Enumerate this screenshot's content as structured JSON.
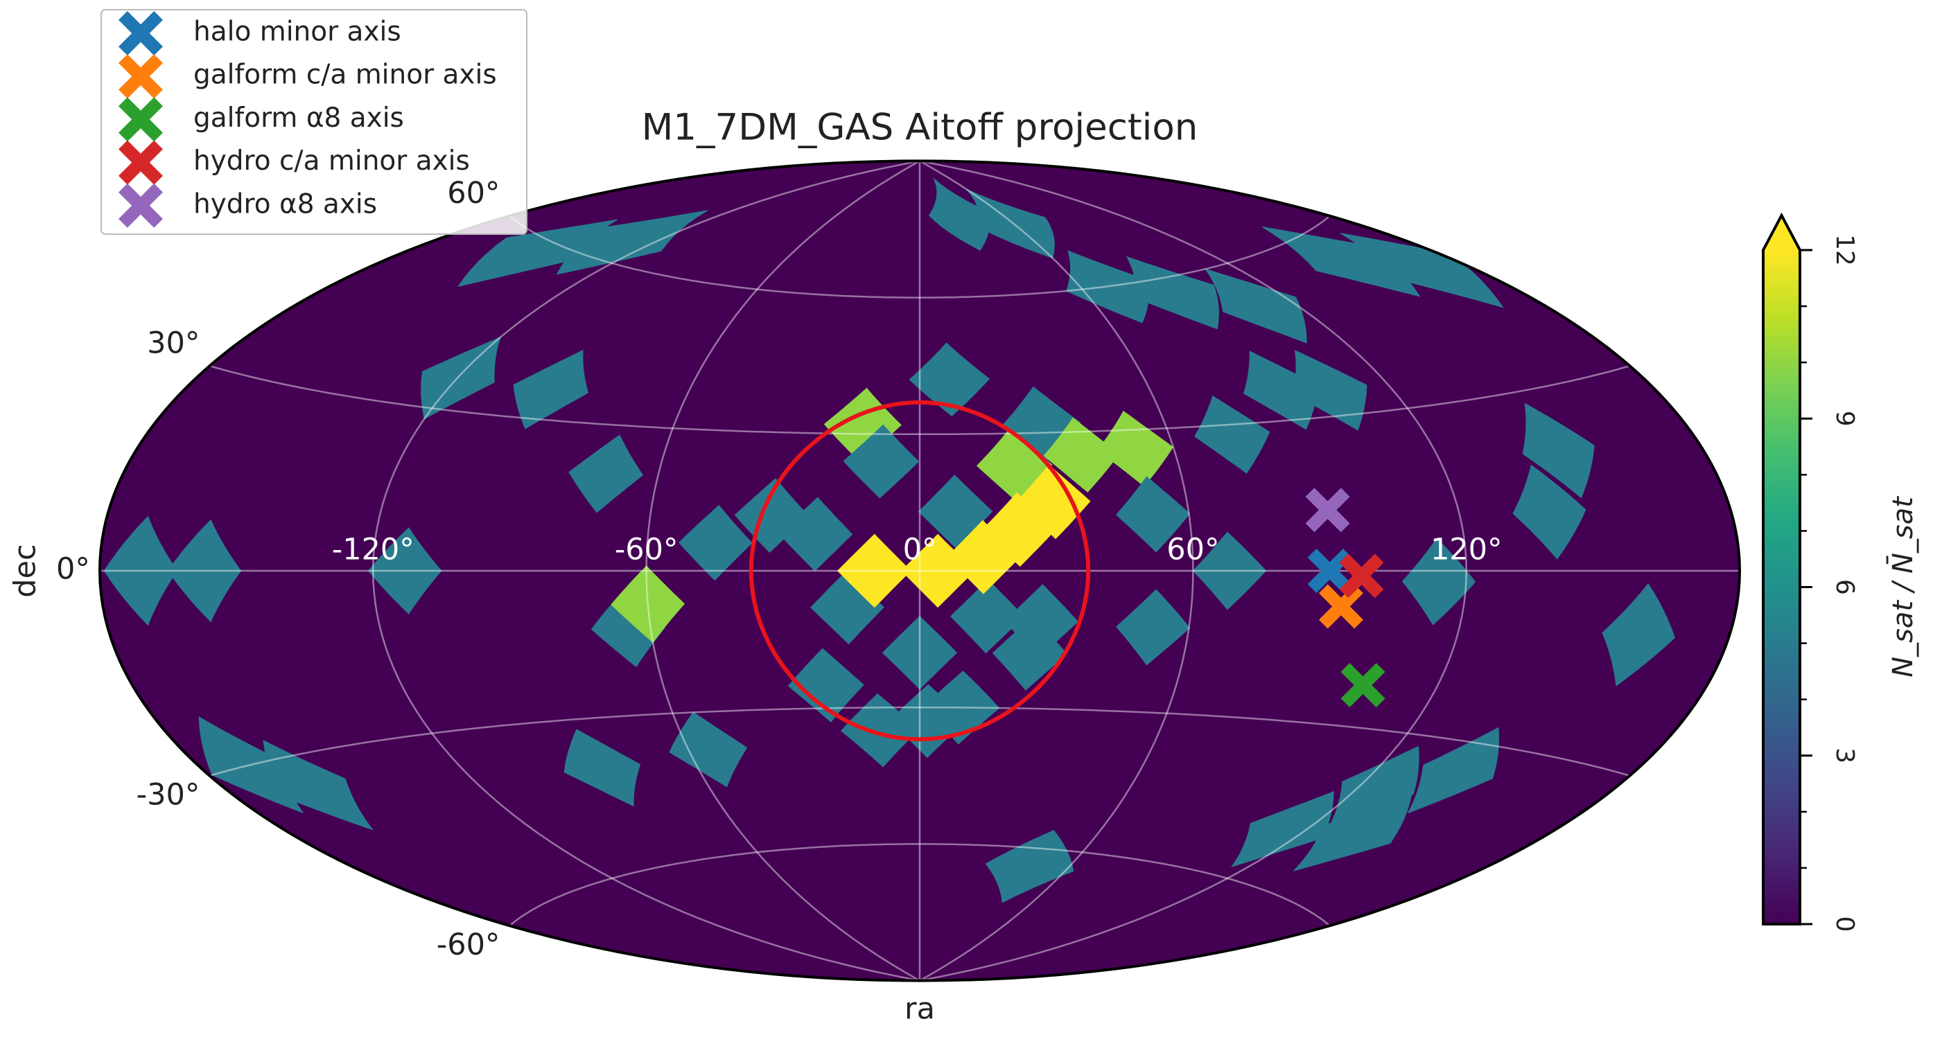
{
  "chart_data": {
    "type": "aitoff",
    "title": "M1_7DM_GAS Aitoff projection",
    "xlabel": "ra",
    "ylabel": "dec",
    "xticks": [
      {
        "value": -120,
        "label": "-120°"
      },
      {
        "value": -60,
        "label": "-60°"
      },
      {
        "value": 0,
        "label": "0°"
      },
      {
        "value": 60,
        "label": "60°"
      },
      {
        "value": 120,
        "label": "120°"
      }
    ],
    "yticks": [
      {
        "value": -60,
        "label": "-60°"
      },
      {
        "value": -30,
        "label": "-30°"
      },
      {
        "value": 0,
        "label": "0°"
      },
      {
        "value": 30,
        "label": "30°"
      },
      {
        "value": 60,
        "label": "60°"
      }
    ],
    "grid": true,
    "colormap": "viridis",
    "clim": [
      0,
      12
    ],
    "cticks": [
      0,
      3,
      6,
      9,
      12
    ],
    "cminorticks": [
      1,
      2,
      4,
      5,
      7,
      8,
      10,
      11
    ],
    "colorbar_extend": "max",
    "colorbar_label": "N_sat / N̄_sat",
    "pixels": [
      {
        "ra": -150,
        "dec": 58,
        "value": 5
      },
      {
        "ra": -130,
        "dec": 64,
        "value": 5
      },
      {
        "ra": 30,
        "dec": 78,
        "value": 5
      },
      {
        "ra": 60,
        "dec": 75,
        "value": 5
      },
      {
        "ra": 70,
        "dec": 60,
        "value": 5
      },
      {
        "ra": 90,
        "dec": 57,
        "value": 5
      },
      {
        "ra": 110,
        "dec": 52,
        "value": 5
      },
      {
        "ra": 155,
        "dec": 55,
        "value": 5
      },
      {
        "ra": 170,
        "dec": 50,
        "value": 5
      },
      {
        "ra": 93,
        "dec": 36,
        "value": 5
      },
      {
        "ra": 105,
        "dec": 35,
        "value": 5
      },
      {
        "ra": 75,
        "dec": 28,
        "value": 5
      },
      {
        "ra": 8,
        "dec": 42,
        "value": 5
      },
      {
        "ra": 30,
        "dec": 32,
        "value": 5
      },
      {
        "ra": -14,
        "dec": 32,
        "value": 10
      },
      {
        "ra": -9,
        "dec": 24,
        "value": 5
      },
      {
        "ra": 22,
        "dec": 23,
        "value": 10
      },
      {
        "ra": 38,
        "dec": 25,
        "value": 10
      },
      {
        "ra": 51,
        "dec": 26,
        "value": 10
      },
      {
        "ra": 52,
        "dec": 12,
        "value": 5
      },
      {
        "ra": 8,
        "dec": 13,
        "value": 5
      },
      {
        "ra": -23,
        "dec": 8,
        "value": 5
      },
      {
        "ra": -33,
        "dec": 12,
        "value": 5
      },
      {
        "ra": -45,
        "dec": 6,
        "value": 5
      },
      {
        "ra": -72,
        "dec": 20,
        "value": 5
      },
      {
        "ra": -95,
        "dec": 36,
        "value": 5
      },
      {
        "ra": -120,
        "dec": 36,
        "value": 5
      },
      {
        "ra": -113,
        "dec": 0,
        "value": 5
      },
      {
        "ra": -171,
        "dec": 0,
        "value": 5
      },
      {
        "ra": -157,
        "dec": 0,
        "value": 5
      },
      {
        "ra": -170,
        "dec": -30,
        "value": 5
      },
      {
        "ra": -160,
        "dec": -35,
        "value": 5
      },
      {
        "ra": -65,
        "dec": -12,
        "value": 5
      },
      {
        "ra": -60,
        "dec": -7,
        "value": 10
      },
      {
        "ra": -16,
        "dec": -8,
        "value": 5
      },
      {
        "ra": 0,
        "dec": -18,
        "value": 5
      },
      {
        "ra": 15,
        "dec": -10,
        "value": 5
      },
      {
        "ra": 25,
        "dec": -18,
        "value": 5
      },
      {
        "ra": 27,
        "dec": -11,
        "value": 5
      },
      {
        "ra": 52,
        "dec": -12,
        "value": 5
      },
      {
        "ra": 68,
        "dec": 0,
        "value": 5
      },
      {
        "ra": 114,
        "dec": -2,
        "value": 5
      },
      {
        "ra": 140,
        "dec": 10,
        "value": 5
      },
      {
        "ra": 148,
        "dec": 20,
        "value": 5
      },
      {
        "ra": 160,
        "dec": -10,
        "value": 5
      },
      {
        "ra": -22,
        "dec": -25,
        "value": 5
      },
      {
        "ra": -10,
        "dec": -35,
        "value": 5
      },
      {
        "ra": 2,
        "dec": -33,
        "value": 5
      },
      {
        "ra": 10,
        "dec": -30,
        "value": 5
      },
      {
        "ra": -85,
        "dec": -40,
        "value": 5
      },
      {
        "ra": -55,
        "dec": -38,
        "value": 5
      },
      {
        "ra": 45,
        "dec": -64,
        "value": 5
      },
      {
        "ra": 125,
        "dec": -40,
        "value": 5
      },
      {
        "ra": 140,
        "dec": -35,
        "value": 5
      },
      {
        "ra": 115,
        "dec": -50,
        "value": 5
      },
      {
        "ra": 135,
        "dec": -48,
        "value": 5
      },
      {
        "ra": -10,
        "dec": 0,
        "value": 12
      },
      {
        "ra": 4,
        "dec": 0,
        "value": 12
      },
      {
        "ra": 14,
        "dec": 3,
        "value": 12
      },
      {
        "ra": 22,
        "dec": 9,
        "value": 12
      },
      {
        "ra": 30,
        "dec": 15,
        "value": 12
      }
    ],
    "circle": {
      "ra": 0,
      "dec": 0,
      "radius": 37,
      "color": "#e8141b"
    },
    "series": [
      {
        "name": "halo minor axis",
        "color": "#1f77b4",
        "ra": 90,
        "dec": 0
      },
      {
        "name": "galform c/a minor axis",
        "color": "#ff7f0e",
        "ra": 93,
        "dec": -7
      },
      {
        "name": "galform α8 axis",
        "color": "#2ca02c",
        "ra": 103,
        "dec": -22
      },
      {
        "name": "hydro c/a minor axis",
        "color": "#d62728",
        "ra": 97,
        "dec": -1
      },
      {
        "name": "hydro α8 axis",
        "color": "#9467bd",
        "ra": 91,
        "dec": 12
      }
    ]
  }
}
